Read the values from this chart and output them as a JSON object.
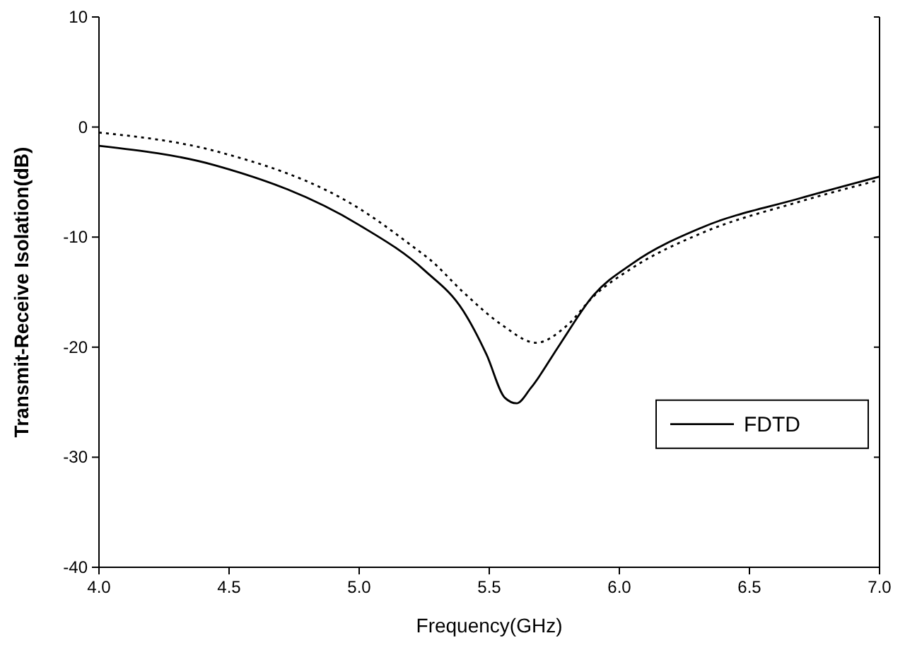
{
  "chart_data": {
    "type": "line",
    "xlabel": "Frequency(GHz)",
    "ylabel": "Transmit-Receive Isolation(dB)",
    "xlim": [
      4.0,
      7.0
    ],
    "xticks": [
      {
        "value": 4,
        "label": "4.0"
      },
      {
        "value": 4.5,
        "label": "4.5"
      },
      {
        "value": 5,
        "label": "5.0"
      },
      {
        "value": 5.5,
        "label": "5.5"
      },
      {
        "value": 6,
        "label": "6.0"
      },
      {
        "value": 6.5,
        "label": "6.5"
      },
      {
        "value": 7,
        "label": "7.0"
      }
    ],
    "ylim": [
      -40,
      10
    ],
    "yticks": [
      10,
      0,
      -10,
      -20,
      -30,
      -40
    ],
    "grid": false,
    "legend": "bottom right",
    "marker": "none",
    "series": [
      {
        "name": "FDTD",
        "color": "#000000",
        "line_style": "solid",
        "x": [
          4.0,
          4.45,
          5.0,
          5.25,
          5.4,
          5.49,
          5.56,
          5.605,
          5.66,
          5.77,
          5.9,
          6.05,
          6.32,
          6.69,
          7.0
        ],
        "values": [
          -1.7,
          -3.5,
          -8.9,
          -13.0,
          -16.7,
          -20.7,
          -24.6,
          -25.1,
          -23.7,
          -19.8,
          -15.3,
          -12.4,
          -9.1,
          -6.5,
          -4.5
        ]
      },
      {
        "color": "#000000",
        "line_style": "dotted",
        "x": [
          4.0,
          4.45,
          5.0,
          5.22,
          5.27,
          5.4,
          5.55,
          5.68,
          5.8,
          5.9,
          6.05,
          6.32,
          6.69,
          7.0
        ],
        "values": [
          -0.5,
          -2.2,
          -7.4,
          -11.1,
          -12.0,
          -15.0,
          -18.0,
          -19.6,
          -18.0,
          -15.4,
          -12.8,
          -9.6,
          -6.8,
          -4.8
        ]
      }
    ]
  }
}
